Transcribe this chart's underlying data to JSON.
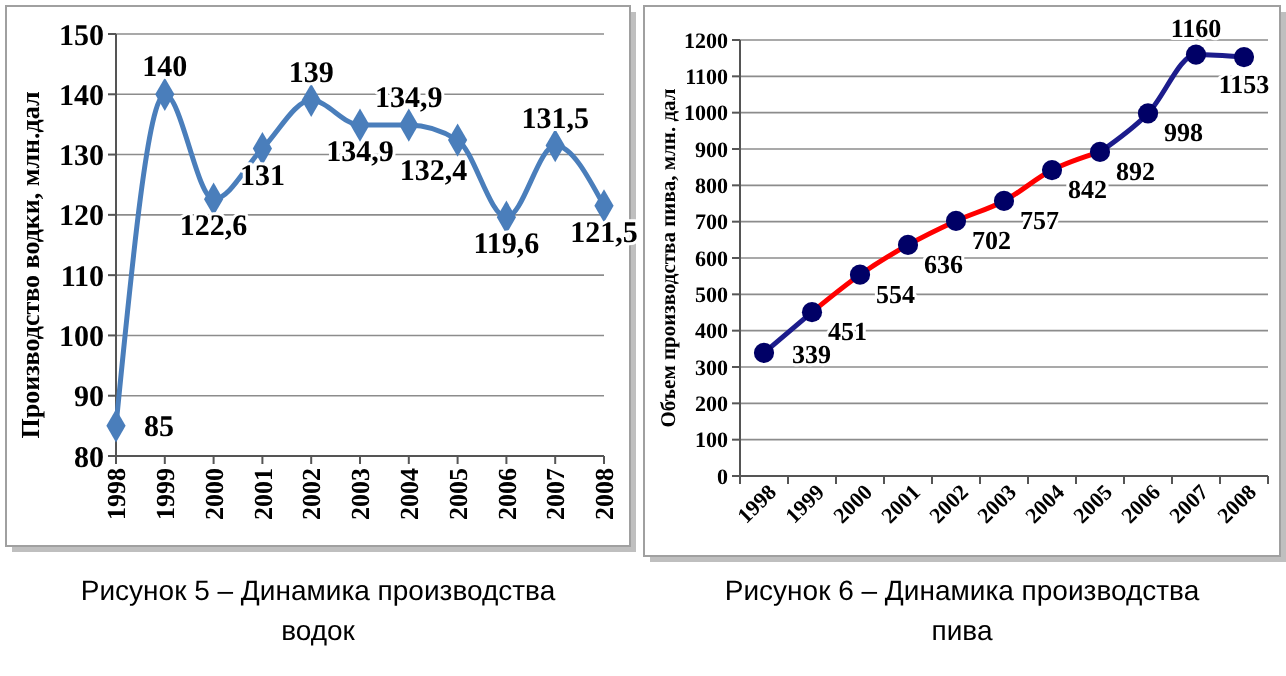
{
  "chart_data": [
    {
      "type": "line",
      "ylabel": "Производство водки, млн.дал",
      "categories": [
        "1998",
        "1999",
        "2000",
        "2001",
        "2002",
        "2003",
        "2004",
        "2005",
        "2006",
        "2007",
        "2008"
      ],
      "values": [
        85,
        140,
        122.6,
        131,
        139,
        134.9,
        134.9,
        132.4,
        119.6,
        131.5,
        121.5
      ],
      "value_labels": [
        "85",
        "140",
        "122,6",
        "131",
        "139",
        "134,9",
        "134,9",
        "132,4",
        "119,6",
        "131,5",
        "121,5"
      ],
      "color": "#4a7ebb",
      "marker": "diamond",
      "ylim": [
        80,
        150
      ],
      "yticks": [
        80,
        90,
        100,
        110,
        120,
        130,
        140,
        150
      ],
      "grid": "y",
      "annotations": [
        "Рисунок 5 – Динамика производства водок"
      ]
    },
    {
      "type": "line",
      "ylabel": "Объем производства пива, млн. дал",
      "categories": [
        "1998",
        "1999",
        "2000",
        "2001",
        "2002",
        "2003",
        "2004",
        "2005",
        "2006",
        "2007",
        "2008"
      ],
      "series": [
        {
          "type": "line",
          "color": "#1c1c8c",
          "marker": "none",
          "values": [
            339,
            451,
            null,
            null,
            null,
            null,
            null,
            892,
            998,
            1160,
            1153
          ]
        },
        {
          "type": "line",
          "color": "#ff0000",
          "marker": "none",
          "values": [
            null,
            451,
            554,
            636,
            702,
            757,
            842,
            892,
            null,
            null,
            null
          ]
        },
        {
          "type": "scatter",
          "color": "#000066",
          "marker": "circle",
          "values": [
            339,
            451,
            554,
            636,
            702,
            757,
            842,
            892,
            998,
            1160,
            1153
          ],
          "value_labels": [
            "339",
            "451",
            "554",
            "636",
            "702",
            "757",
            "842",
            "892",
            "998",
            "1160",
            "1153"
          ]
        }
      ],
      "ylim": [
        0,
        1200
      ],
      "yticks": [
        0,
        100,
        200,
        300,
        400,
        500,
        600,
        700,
        800,
        900,
        1000,
        1100,
        1200
      ],
      "grid": "y",
      "annotations": [
        "Рисунок 6 – Динамика производства пива"
      ]
    }
  ]
}
